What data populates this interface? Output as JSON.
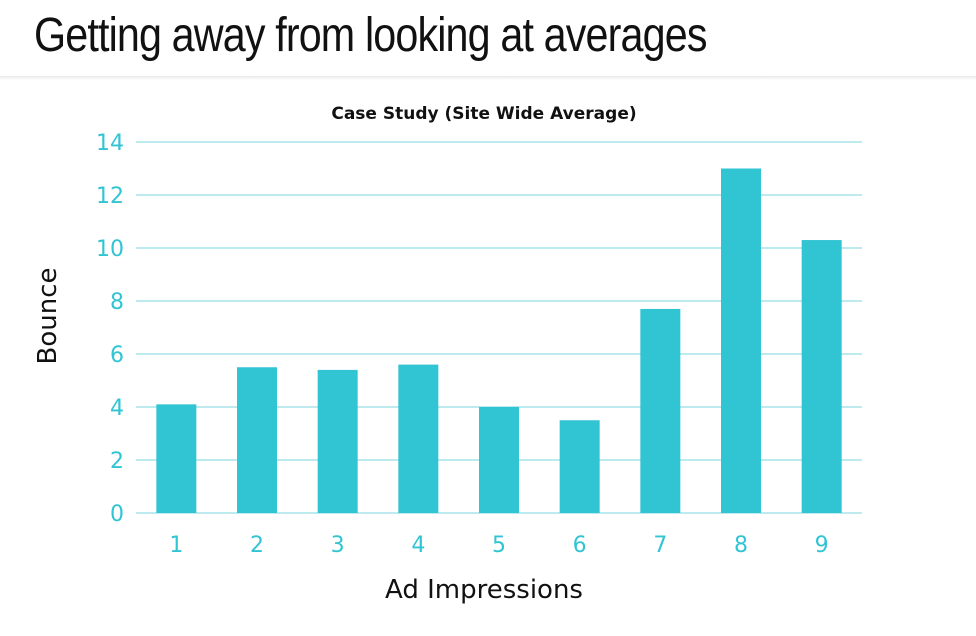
{
  "slide": {
    "title": "Getting away from looking at averages"
  },
  "colors": {
    "bar": "#31C4D3",
    "grid": "#A6E3E9",
    "tick_text": "#31C4D3",
    "text": "#111111"
  },
  "chart_data": {
    "type": "bar",
    "title": "Case Study (Site Wide Average)",
    "xlabel": "Ad Impressions",
    "ylabel": "Bounce",
    "categories": [
      "1",
      "2",
      "3",
      "4",
      "5",
      "6",
      "7",
      "8",
      "9"
    ],
    "values": [
      4.1,
      5.5,
      5.4,
      5.6,
      4.0,
      3.5,
      7.7,
      13.0,
      10.3
    ],
    "ylim": [
      0,
      14
    ],
    "yticks": [
      0,
      2,
      4,
      6,
      8,
      10,
      12,
      14
    ],
    "grid": true,
    "legend": "none"
  }
}
